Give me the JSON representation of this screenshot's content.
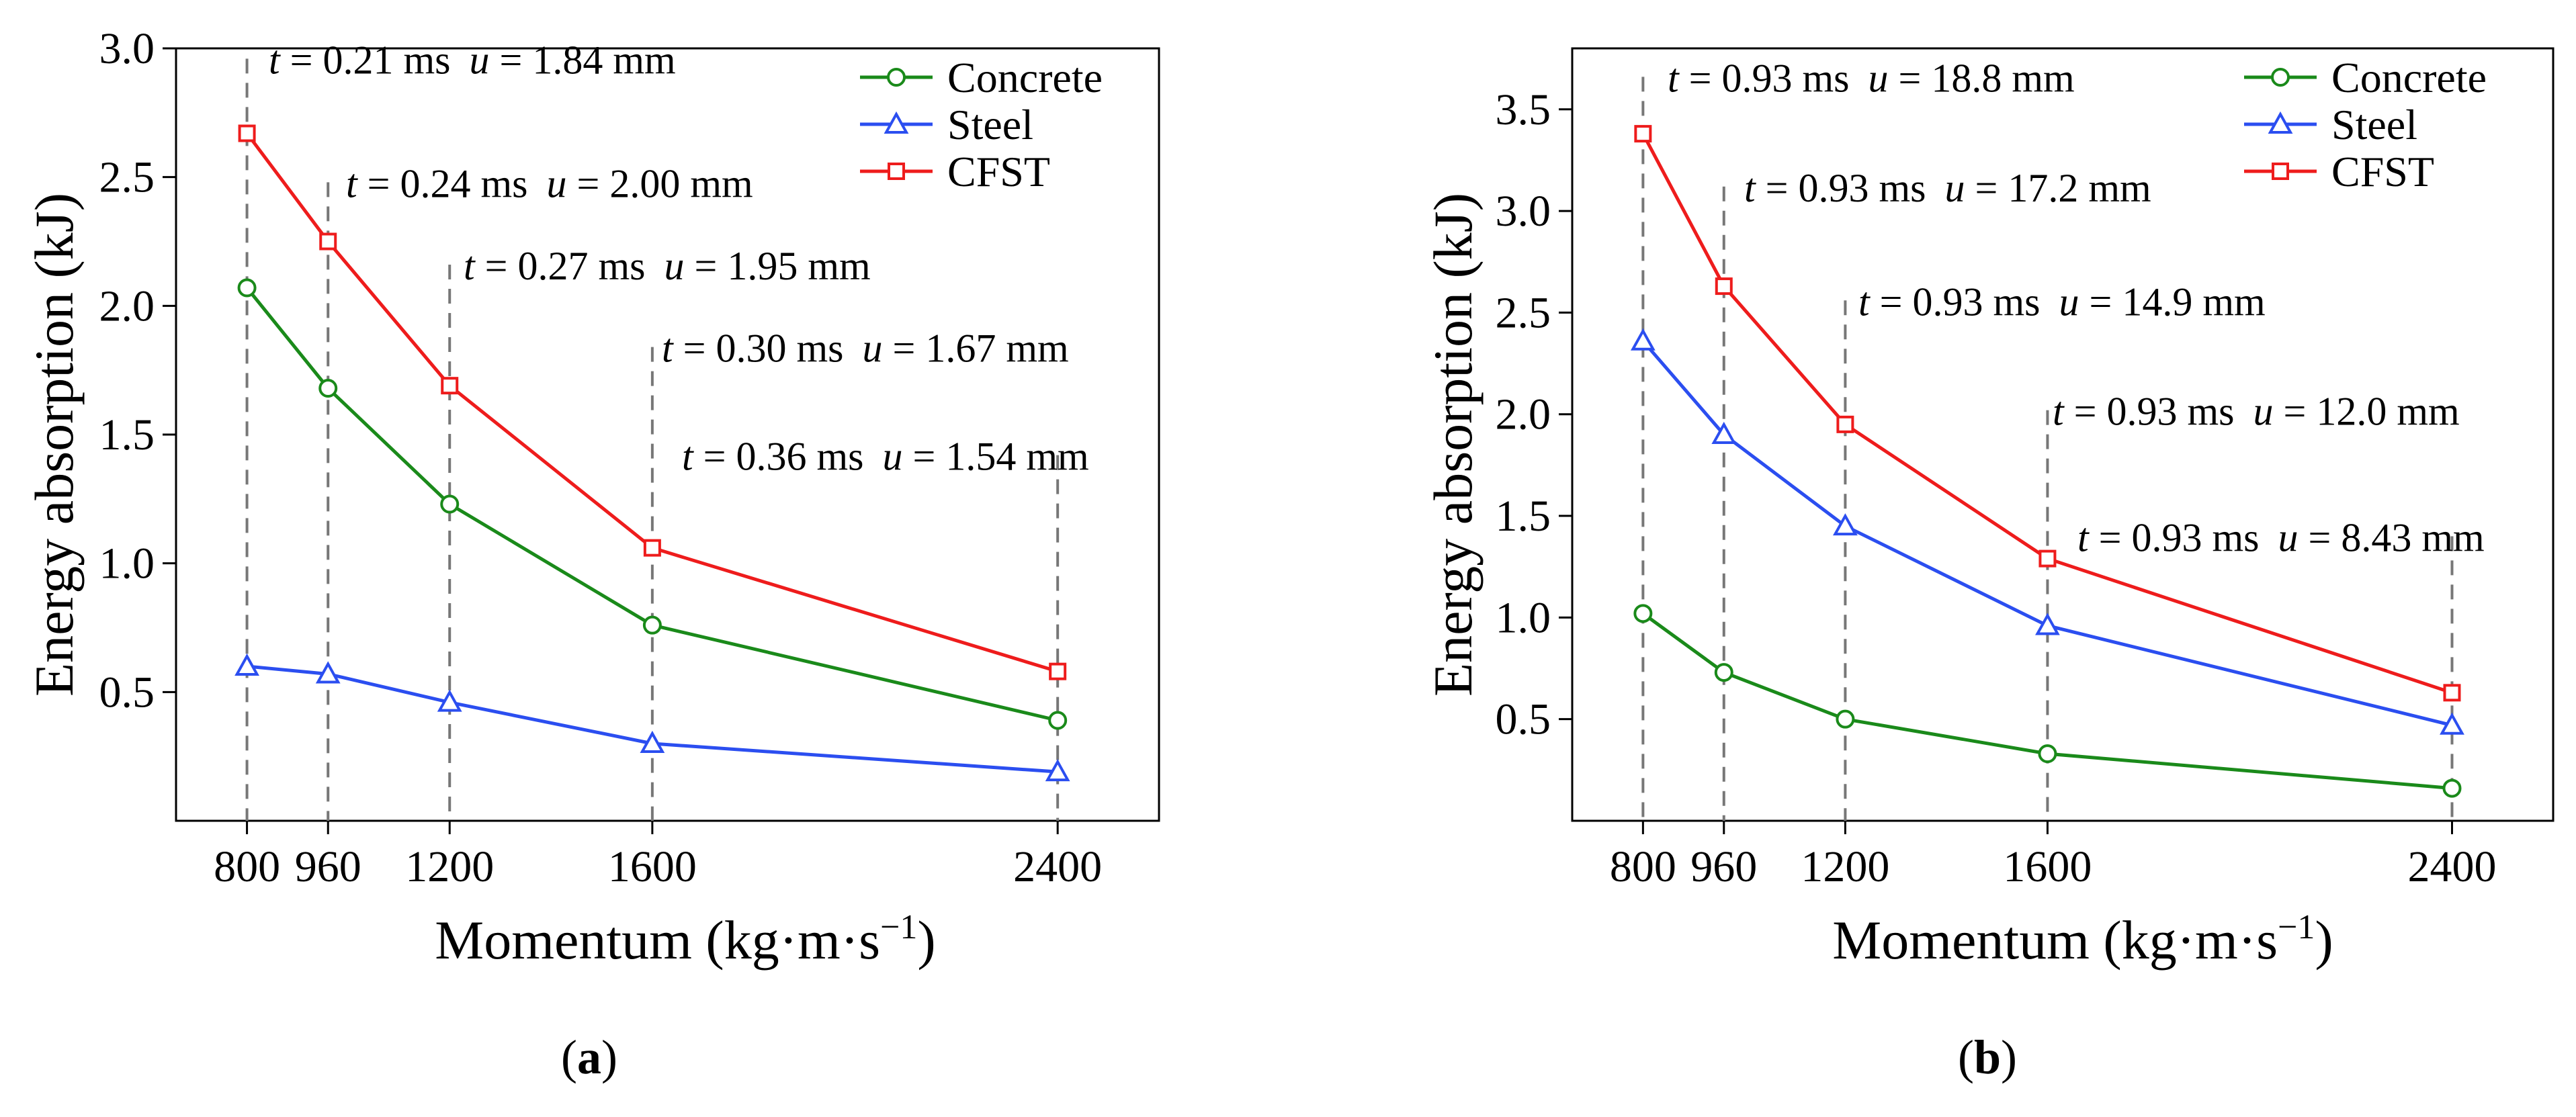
{
  "figure": {
    "panel_labels": [
      {
        "open": "(",
        "letter": "a",
        "close": ")"
      },
      {
        "open": "(",
        "letter": "b",
        "close": ")"
      }
    ]
  },
  "chart_data": [
    {
      "type": "line",
      "panel": "a",
      "xlabel": "Momentum (kg·m·s",
      "xlabel_sup": "−1",
      "xlabel_end": ")",
      "ylabel": "Energy absorption (kJ)",
      "x": [
        800,
        960,
        1200,
        1600,
        2400
      ],
      "xticks": [
        "800",
        "960",
        "1200",
        "1600",
        "2400"
      ],
      "xlim": [
        660,
        2600
      ],
      "ylim": [
        0.0,
        3.0
      ],
      "yticks": [
        0.5,
        1.0,
        1.5,
        2.0,
        2.5,
        3.0
      ],
      "ytick_labels": [
        "0.5",
        "1.0",
        "1.5",
        "2.0",
        "2.5",
        "3.0"
      ],
      "legend_position": "top-right",
      "series": [
        {
          "name": "Concrete",
          "color": "#1a8a1a",
          "marker": "circle",
          "values": [
            2.07,
            1.68,
            1.23,
            0.76,
            0.39
          ]
        },
        {
          "name": "Steel",
          "color": "#2b4ef0",
          "marker": "triangle",
          "values": [
            0.6,
            0.57,
            0.46,
            0.3,
            0.19
          ]
        },
        {
          "name": "CFST",
          "color": "#ee1c1c",
          "marker": "square",
          "values": [
            2.67,
            2.25,
            1.69,
            1.06,
            0.58
          ]
        }
      ],
      "annotations": [
        {
          "x": 800,
          "y_level": 2.96,
          "t_label": "t",
          "t_text": " = 0.21 ms",
          "u_label": "u",
          "u_text": " = 1.84 mm"
        },
        {
          "x": 960,
          "y_level": 2.48,
          "t_label": "t",
          "t_text": " = 0.24 ms",
          "u_label": "u",
          "u_text": " = 2.00 mm"
        },
        {
          "x": 1200,
          "y_level": 2.16,
          "t_label": "t",
          "t_text": " = 0.27 ms",
          "u_label": "u",
          "u_text": " = 1.95 mm"
        },
        {
          "x": 1600,
          "y_level": 1.84,
          "t_label": "t",
          "t_text": " = 0.30 ms",
          "u_label": "u",
          "u_text": " = 1.67 mm"
        },
        {
          "x": 2400,
          "y_level": 1.42,
          "t_label": "t",
          "t_text": " = 0.36 ms",
          "u_label": "u",
          "u_text": " = 1.54 mm"
        }
      ]
    },
    {
      "type": "line",
      "panel": "b",
      "xlabel": "Momentum (kg·m·s",
      "xlabel_sup": "−1",
      "xlabel_end": ")",
      "ylabel": "Energy absorption (kJ)",
      "x": [
        800,
        960,
        1200,
        1600,
        2400
      ],
      "xticks": [
        "800",
        "960",
        "1200",
        "1600",
        "2400"
      ],
      "xlim": [
        660,
        2600
      ],
      "ylim": [
        0.0,
        3.8
      ],
      "yticks": [
        0.5,
        1.0,
        1.5,
        2.0,
        2.5,
        3.0,
        3.5
      ],
      "ytick_labels": [
        "0.5",
        "1.0",
        "1.5",
        "2.0",
        "2.5",
        "3.0",
        "3.5"
      ],
      "legend_position": "top-right",
      "series": [
        {
          "name": "Concrete",
          "color": "#1a8a1a",
          "marker": "circle",
          "values": [
            1.02,
            0.73,
            0.5,
            0.33,
            0.16
          ]
        },
        {
          "name": "Steel",
          "color": "#2b4ef0",
          "marker": "triangle",
          "values": [
            2.36,
            1.9,
            1.45,
            0.96,
            0.47
          ]
        },
        {
          "name": "CFST",
          "color": "#ee1c1c",
          "marker": "square",
          "values": [
            3.38,
            2.63,
            1.95,
            1.29,
            0.63
          ]
        }
      ],
      "annotations": [
        {
          "x": 800,
          "y_level": 3.66,
          "t_label": "t",
          "t_text": " = 0.93 ms",
          "u_label": "u",
          "u_text": " = 18.8 mm"
        },
        {
          "x": 960,
          "y_level": 3.12,
          "t_label": "t",
          "t_text": " = 0.93 ms",
          "u_label": "u",
          "u_text": " = 17.2 mm"
        },
        {
          "x": 1200,
          "y_level": 2.56,
          "t_label": "t",
          "t_text": " = 0.93 ms",
          "u_label": "u",
          "u_text": " = 14.9 mm"
        },
        {
          "x": 1600,
          "y_level": 2.02,
          "t_label": "t",
          "t_text": " = 0.93 ms",
          "u_label": "u",
          "u_text": " = 12.0 mm"
        },
        {
          "x": 2400,
          "y_level": 1.4,
          "t_label": "t",
          "t_text": " = 0.93 ms",
          "u_label": "u",
          "u_text": " = 8.43 mm"
        }
      ]
    }
  ]
}
